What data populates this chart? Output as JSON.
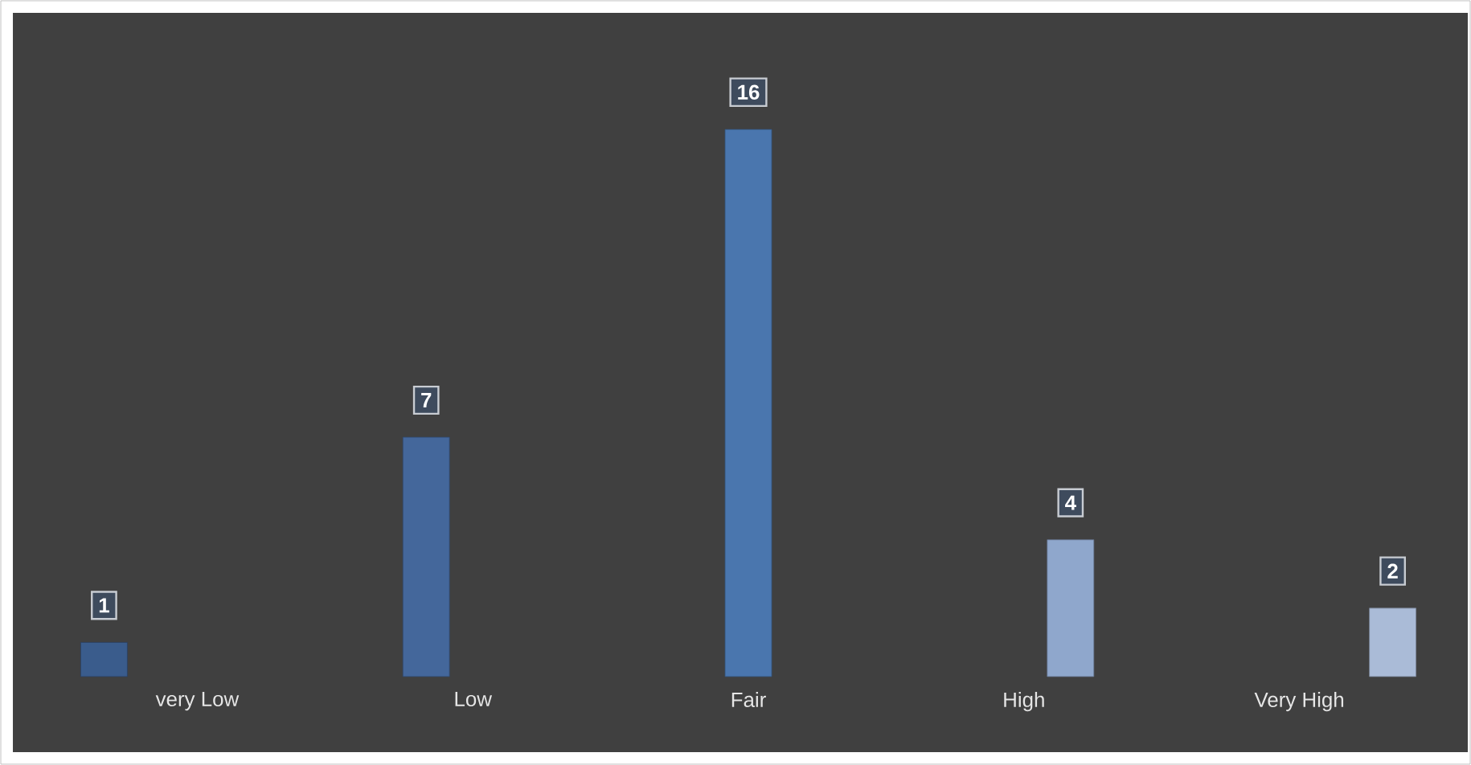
{
  "chart_data": {
    "type": "bar",
    "categories": [
      "very Low",
      "Low",
      "Fair",
      "High",
      "Very High"
    ],
    "values": [
      1,
      7,
      16,
      4,
      2
    ],
    "colors": [
      "#3a5c8c",
      "#44679b",
      "#4a76ae",
      "#8fa7cc",
      "#aabbd7"
    ],
    "data_labels": true
  }
}
